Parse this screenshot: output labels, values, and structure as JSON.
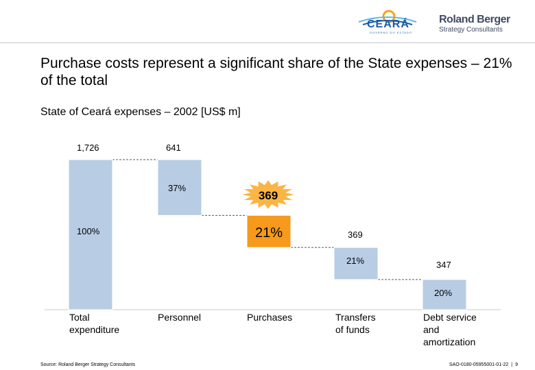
{
  "header": {
    "ceara_logo_text": "CEARÁ",
    "ceara_logo_tagline": "GOVERNO DO ESTADO",
    "rb_logo_name": "Roland Berger",
    "rb_logo_sub": "Strategy Consultants"
  },
  "title": "Purchase costs represent a significant share of the State expenses – 21% of the total",
  "subtitle": "State of Ceará expenses – 2002 [US$ m]",
  "chart_data": {
    "type": "bar",
    "subtype": "waterfall",
    "title": "State of Ceará expenses – 2002 [US$ m]",
    "categories": [
      "Total\nexpenditure",
      "Personnel",
      "Purchases",
      "Transfers\nof funds",
      "Debt service\nand\namortization"
    ],
    "category_lines": [
      [
        "Total",
        "expenditure"
      ],
      [
        "Personnel"
      ],
      [
        "Purchases"
      ],
      [
        "Transfers",
        "of funds"
      ],
      [
        "Debt service",
        "and",
        "amortization"
      ]
    ],
    "values": [
      1726,
      641,
      369,
      369,
      347
    ],
    "value_labels": [
      "1,726",
      "641",
      "369",
      "369",
      "347"
    ],
    "percent_labels": [
      "100%",
      "37%",
      "21%",
      "21%",
      "20%"
    ],
    "highlight_index": 2,
    "highlight_burst_label": "369",
    "colors": {
      "bar": "#b8cce4",
      "highlight": "#f59a1c",
      "burst": "#fbb544",
      "connector": "#555555"
    }
  },
  "footer": {
    "source": "Source: Roland Berger Strategy Consultants",
    "doc_id": "SAO-0180-05955001-01-22",
    "page": "9"
  }
}
